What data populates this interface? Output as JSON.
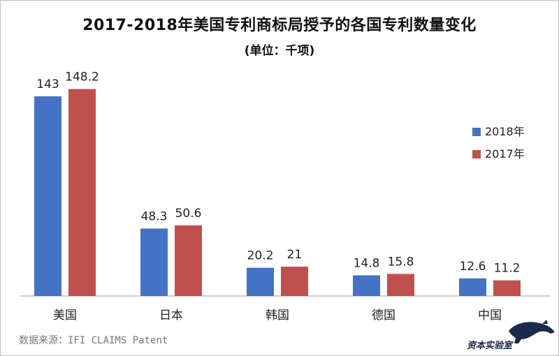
{
  "chart_data": {
    "type": "bar",
    "title": "2017-2018年美国专利商标局授予的各国专利数量变化",
    "subtitle": "(单位：千项)",
    "categories": [
      "美国",
      "日本",
      "韩国",
      "德国",
      "中国"
    ],
    "series": [
      {
        "name": "2018年",
        "values": [
          143,
          48.3,
          20.2,
          14.8,
          12.6
        ],
        "labels": [
          "143",
          "48.3",
          "20.2",
          "14.8",
          "12.6"
        ],
        "color": "#4472C4"
      },
      {
        "name": "2017年",
        "values": [
          148.2,
          50.6,
          21,
          15.8,
          11.2
        ],
        "labels": [
          "148.2",
          "50.6",
          "21",
          "15.8",
          "11.2"
        ],
        "color": "#C0504D"
      }
    ],
    "ylim": [
      0,
      160
    ],
    "grid": false,
    "legend_position": "right"
  },
  "source": "数据来源：IFI CLAIMS Patent",
  "watermark_text": "资本实验室"
}
